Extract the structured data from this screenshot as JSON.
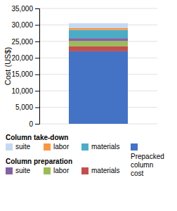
{
  "chart_data": {
    "type": "bar",
    "stacked": true,
    "ylabel": "Cost (US$)",
    "categories": [
      null
    ],
    "series": [
      {
        "name": "Prepacked\ncolumn\ncost",
        "color": "#4472C4",
        "values": [
          22000
        ]
      },
      {
        "name": "materials",
        "group": "Column preparation",
        "color": "#C0504D",
        "values": [
          1500
        ]
      },
      {
        "name": "labor",
        "group": "Column preparation",
        "color": "#9BBB59",
        "values": [
          1600
        ]
      },
      {
        "name": "suite",
        "group": "Column preparation",
        "color": "#8064A2",
        "values": [
          900
        ]
      },
      {
        "name": "materials",
        "group": "Column take-down",
        "color": "#4BACC6",
        "values": [
          2500
        ]
      },
      {
        "name": "labor",
        "group": "Column take-down",
        "color": "#F79646",
        "values": [
          600
        ]
      },
      {
        "name": "suite",
        "group": "Column take-down",
        "color": "#C6D9F1",
        "values": [
          1400
        ]
      }
    ],
    "ylim": [
      0,
      35000
    ],
    "yticks": [
      0,
      {
        "value": 5000,
        "label": "5,000"
      },
      {
        "value": 10000,
        "label": "10,000"
      },
      {
        "value": 15000,
        "label": "15,000"
      },
      {
        "value": 20000,
        "label": "20,000"
      },
      {
        "value": 25000,
        "label": "25,000"
      },
      {
        "value": 30000,
        "label": "30,000"
      },
      {
        "value": 35000,
        "label": "35,000"
      }
    ],
    "grid": true,
    "tick_labels": "y"
  }
}
